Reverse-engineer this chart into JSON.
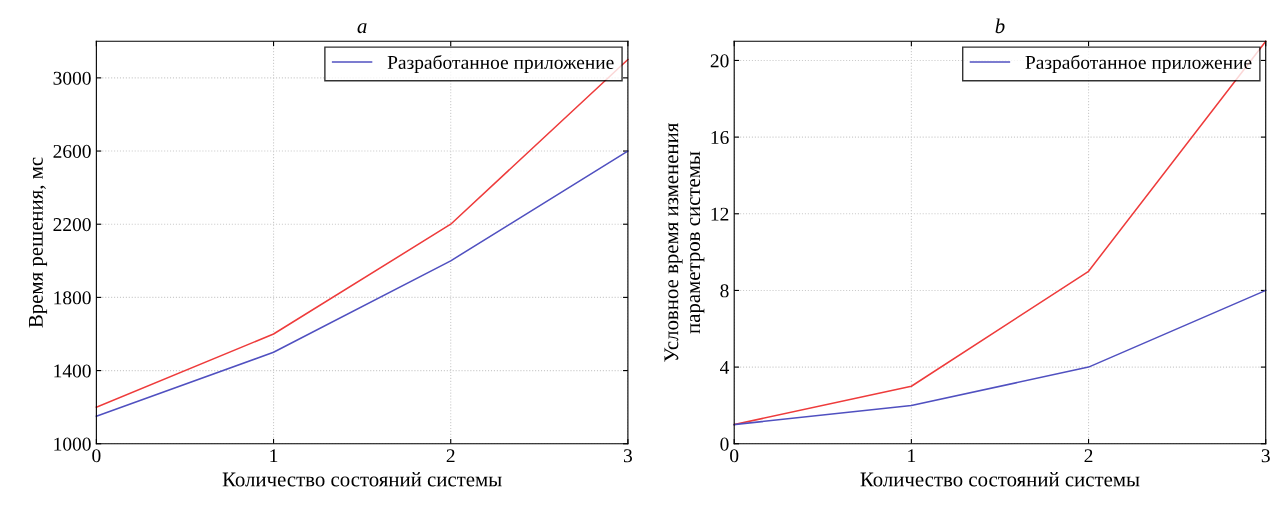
{
  "chart_data": [
    {
      "type": "line",
      "title": "a",
      "xlabel": "Количество состояний системы",
      "ylabel": "Время решения, мс",
      "x": [
        0,
        1,
        2,
        3
      ],
      "xlim": [
        0,
        3
      ],
      "xticks": [
        0,
        1,
        2,
        3
      ],
      "ylim": [
        1000,
        3200
      ],
      "yticks": [
        1000,
        1400,
        1800,
        2200,
        2600,
        3000
      ],
      "grid": true,
      "legend": "top right",
      "series": [
        {
          "color": "#ee3b3b",
          "values": [
            1200,
            1600,
            2200,
            3100
          ]
        },
        {
          "name": "Разработанное приложение",
          "color": "#5050c0",
          "values": [
            1150,
            1500,
            2000,
            2600
          ]
        }
      ]
    },
    {
      "type": "line",
      "title": "b",
      "xlabel": "Количество состояний системы",
      "ylabel": "Условное время изменения\nпараметров системы",
      "x": [
        0,
        1,
        2,
        3
      ],
      "xlim": [
        0,
        3
      ],
      "xticks": [
        0,
        1,
        2,
        3
      ],
      "ylim": [
        0,
        21
      ],
      "yticks": [
        0,
        4,
        8,
        12,
        16,
        20
      ],
      "grid": true,
      "legend": "top right",
      "series": [
        {
          "color": "#ee3b3b",
          "values": [
            1,
            3,
            9,
            21
          ]
        },
        {
          "name": "Разработанное приложение",
          "color": "#5050c0",
          "values": [
            1,
            2,
            4,
            8
          ]
        }
      ]
    }
  ]
}
